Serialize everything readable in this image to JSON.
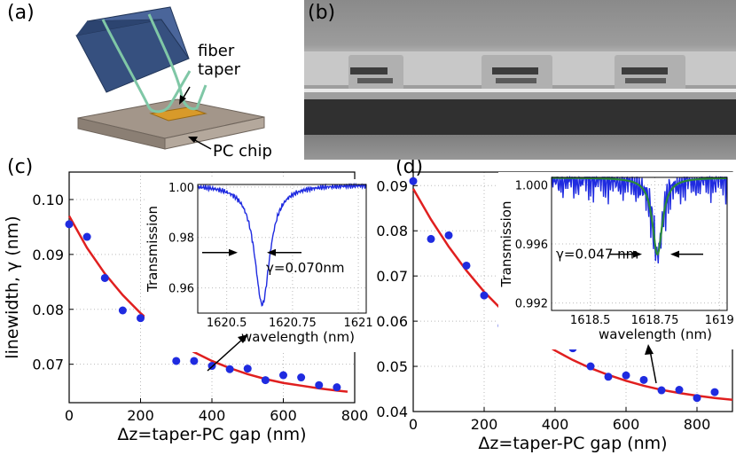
{
  "panels": {
    "a": "(a)",
    "b": "(b)",
    "c": "(c)",
    "d": "(d)"
  },
  "schematic": {
    "fiber_label_line1": "fiber",
    "fiber_label_line2": "taper",
    "chip_label": "PC chip",
    "colors": {
      "block": "#3a5488",
      "fiber": "#7fc7a6",
      "chip": "#a89a8c",
      "cavity": "#d89a2a"
    }
  },
  "chart_data": [
    {
      "id": "c",
      "type": "scatter",
      "xlabel": "Δz=taper-PC gap (nm)",
      "ylabel": "linewidth, γ (nm)",
      "xlim": [
        0,
        800
      ],
      "ylim": [
        0.063,
        0.105
      ],
      "xticks": [
        "0",
        "200",
        "400",
        "600",
        "800"
      ],
      "yticks": [
        "0.07",
        "0.08",
        "0.09",
        "0.10"
      ],
      "series": [
        {
          "type": "scatter",
          "color": "#1f2be0",
          "x": [
            0,
            50,
            100,
            150,
            200,
            250,
            300,
            350,
            400,
            450,
            500,
            550,
            600,
            650,
            700,
            750
          ],
          "y": [
            0.0955,
            0.0932,
            0.0857,
            0.0798,
            0.0784,
            0.074,
            0.0706,
            0.0706,
            0.0697,
            0.0691,
            0.0692,
            0.0671,
            0.068,
            0.0676,
            0.0662,
            0.0658
          ]
        },
        {
          "type": "line",
          "color": "#e01f1f",
          "x": [
            0,
            50,
            100,
            150,
            200,
            250,
            300,
            350,
            400,
            450,
            500,
            550,
            600,
            650,
            700,
            750,
            780
          ],
          "y": [
            0.097,
            0.0912,
            0.0865,
            0.0826,
            0.0793,
            0.0765,
            0.0742,
            0.0722,
            0.0706,
            0.0693,
            0.0682,
            0.0673,
            0.0666,
            0.0661,
            0.0656,
            0.0652,
            0.065
          ]
        }
      ],
      "inset": {
        "ylabel": "Transmission",
        "xlabel": "wavelength (nm)",
        "xticks": [
          "1620.5",
          "1620.75",
          "1621"
        ],
        "yticks": [
          "1.00",
          "0.98",
          "0.96"
        ],
        "xlim": [
          1620.39,
          1621.03
        ],
        "ylim": [
          0.95,
          1.001
        ],
        "annotation": "γ=0.070nm",
        "curve_color": "#1f2be0",
        "center": 1620.635,
        "depth": 0.0475,
        "hwhm": 0.035
      }
    },
    {
      "id": "d",
      "type": "scatter",
      "xlabel": "Δz=taper-PC gap (nm)",
      "ylabel": "",
      "xlim": [
        0,
        900
      ],
      "ylim": [
        0.04,
        0.093
      ],
      "xticks": [
        "0",
        "200",
        "400",
        "600",
        "800"
      ],
      "yticks": [
        "0.04",
        "0.05",
        "0.06",
        "0.07",
        "0.08",
        "0.09"
      ],
      "series": [
        {
          "type": "scatter",
          "color": "#1f2be0",
          "x": [
            0,
            50,
            100,
            150,
            200,
            250,
            300,
            350,
            400,
            450,
            500,
            550,
            600,
            650,
            700,
            750,
            800,
            850
          ],
          "y": [
            0.091,
            0.0782,
            0.079,
            0.0723,
            0.0657,
            0.059,
            0.0567,
            0.0573,
            0.0565,
            0.054,
            0.05,
            0.0477,
            0.048,
            0.047,
            0.0447,
            0.0448,
            0.043,
            0.0443
          ]
        },
        {
          "type": "line",
          "color": "#e01f1f",
          "x": [
            0,
            50,
            100,
            150,
            200,
            250,
            300,
            350,
            400,
            450,
            500,
            550,
            600,
            650,
            700,
            750,
            800,
            850,
            900
          ],
          "y": [
            0.0893,
            0.0825,
            0.0765,
            0.0712,
            0.0665,
            0.0625,
            0.059,
            0.056,
            0.0535,
            0.0514,
            0.0496,
            0.0481,
            0.0468,
            0.0457,
            0.0448,
            0.0441,
            0.0435,
            0.043,
            0.0426
          ]
        }
      ],
      "inset": {
        "ylabel": "Transmission",
        "xlabel": "wavelength (nm)",
        "xticks": [
          "1618.5",
          "1618.75",
          "1619"
        ],
        "yticks": [
          "1.000",
          "0.996",
          "0.992"
        ],
        "xlim": [
          1618.35,
          1619.03
        ],
        "ylim": [
          0.9915,
          1.0005
        ],
        "annotation": "γ=0.047 nm",
        "curve_color": "#1f2be0",
        "fit_color": "#2a8a3a",
        "center": 1618.76,
        "depth": 0.0052,
        "hwhm": 0.0235
      }
    }
  ]
}
